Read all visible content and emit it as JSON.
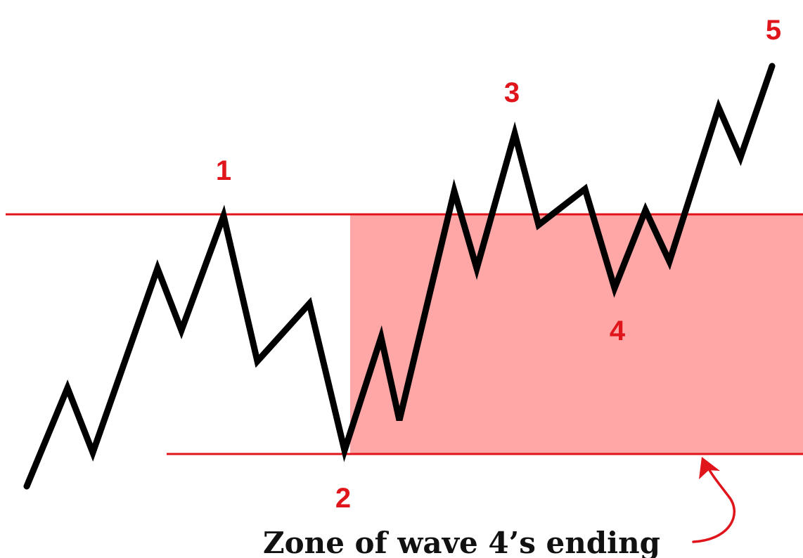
{
  "diagram": {
    "colors": {
      "price_line": "#000000",
      "level_line": "#e0151b",
      "zone_fill": "#ff4d4d",
      "label": "#e0151b",
      "caption": "#111111"
    },
    "wave_labels": {
      "w1": "1",
      "w2": "2",
      "w3": "3",
      "w4": "4",
      "w5": "5"
    },
    "zone_caption": "Zone of wave 4’s ending"
  }
}
